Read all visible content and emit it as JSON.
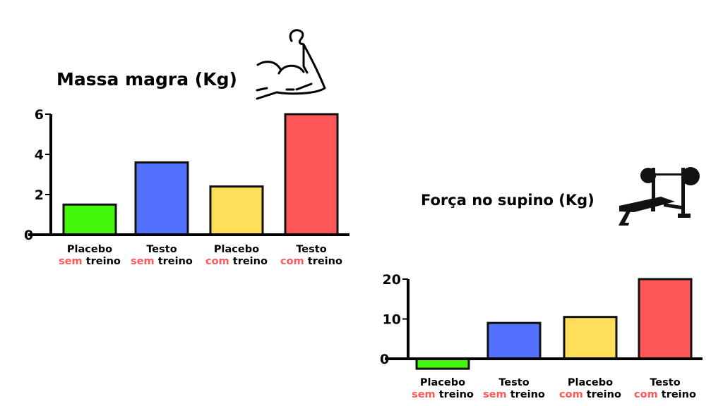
{
  "chart_data": [
    {
      "type": "bar",
      "title": "Massa magra (Kg)",
      "categories": [
        {
          "line1": "Placebo",
          "line2a": "sem",
          "line2b": "treino"
        },
        {
          "line1": "Testo",
          "line2a": "sem",
          "line2b": "treino"
        },
        {
          "line1": "Placebo",
          "line2a": "com",
          "line2b": "treino"
        },
        {
          "line1": "Testo",
          "line2a": "com",
          "line2b": "treino"
        }
      ],
      "values": [
        1.5,
        3.6,
        2.4,
        6.0
      ],
      "colors": [
        "#45f70c",
        "#5271ff",
        "#ffde59",
        "#ff5757"
      ],
      "yticks": [
        0,
        2,
        4,
        6
      ],
      "ylim": [
        0,
        6
      ],
      "xlabel": "",
      "ylabel": "",
      "icon": "flexed-bicep-icon"
    },
    {
      "type": "bar",
      "title": "Força no supino (Kg)",
      "categories": [
        {
          "line1": "Placebo",
          "line2a": "sem",
          "line2b": "treino"
        },
        {
          "line1": "Testo",
          "line2a": "sem",
          "line2b": "treino"
        },
        {
          "line1": "Placebo",
          "line2a": "com",
          "line2b": "treino"
        },
        {
          "line1": "Testo",
          "line2a": "com",
          "line2b": "treino"
        }
      ],
      "values": [
        -2.5,
        9,
        10.5,
        20
      ],
      "colors": [
        "#45f70c",
        "#5271ff",
        "#ffde59",
        "#ff5757"
      ],
      "yticks": [
        0,
        10,
        20
      ],
      "ylim": [
        -3,
        20
      ],
      "xlabel": "",
      "ylabel": "",
      "icon": "bench-press-icon"
    }
  ]
}
